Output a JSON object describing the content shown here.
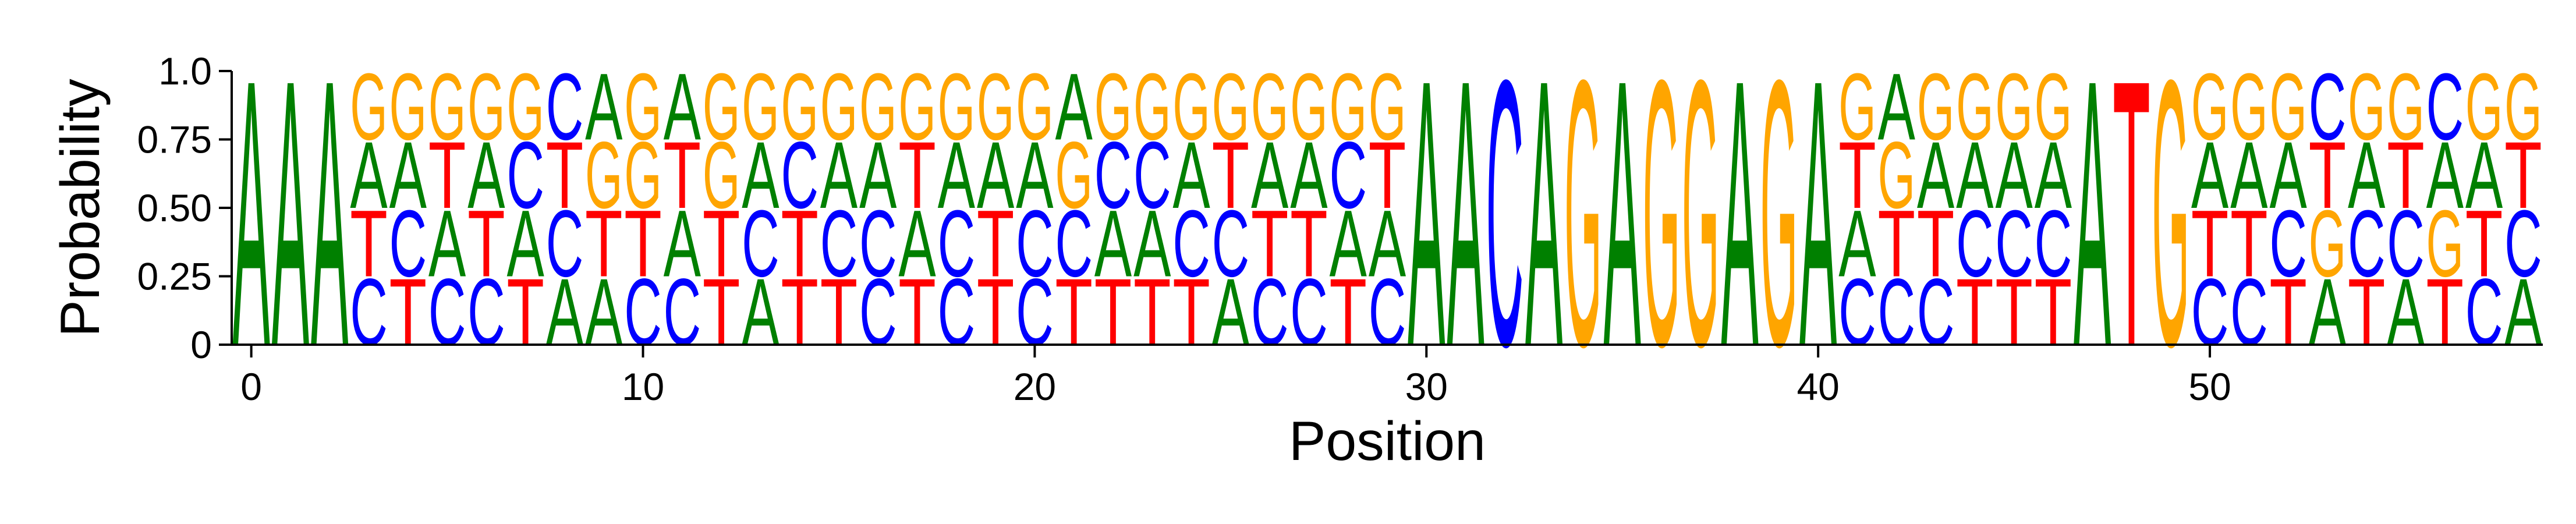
{
  "chart_data": {
    "type": "sequence-logo",
    "xlabel": "Position",
    "ylabel": "Probability",
    "ylim": [
      0,
      1
    ],
    "xlim": [
      -0.5,
      58.5
    ],
    "y_ticks": [
      "0",
      "0.25",
      "0.50",
      "0.75",
      "1.0"
    ],
    "y_tick_values": [
      0,
      0.25,
      0.5,
      0.75,
      1.0
    ],
    "x_ticks": [
      "0",
      "10",
      "20",
      "30",
      "40",
      "50"
    ],
    "x_tick_values": [
      0,
      10,
      20,
      30,
      40,
      50
    ],
    "letter_colors": {
      "A": "#008000",
      "C": "#0000ff",
      "G": "#ffa500",
      "T": "#ff0000"
    },
    "positions": [
      {
        "pos": 0,
        "stack": [
          [
            "A",
            1.0
          ]
        ]
      },
      {
        "pos": 1,
        "stack": [
          [
            "A",
            1.0
          ]
        ]
      },
      {
        "pos": 2,
        "stack": [
          [
            "A",
            1.0
          ]
        ]
      },
      {
        "pos": 3,
        "stack": [
          [
            "C",
            0.25
          ],
          [
            "T",
            0.25
          ],
          [
            "A",
            0.25
          ],
          [
            "G",
            0.25
          ]
        ]
      },
      {
        "pos": 4,
        "stack": [
          [
            "T",
            0.25
          ],
          [
            "C",
            0.25
          ],
          [
            "A",
            0.25
          ],
          [
            "G",
            0.25
          ]
        ]
      },
      {
        "pos": 5,
        "stack": [
          [
            "C",
            0.25
          ],
          [
            "A",
            0.25
          ],
          [
            "T",
            0.25
          ],
          [
            "G",
            0.25
          ]
        ]
      },
      {
        "pos": 6,
        "stack": [
          [
            "C",
            0.25
          ],
          [
            "T",
            0.25
          ],
          [
            "A",
            0.25
          ],
          [
            "G",
            0.25
          ]
        ]
      },
      {
        "pos": 7,
        "stack": [
          [
            "T",
            0.25
          ],
          [
            "A",
            0.25
          ],
          [
            "C",
            0.25
          ],
          [
            "G",
            0.25
          ]
        ]
      },
      {
        "pos": 8,
        "stack": [
          [
            "A",
            0.25
          ],
          [
            "C",
            0.25
          ],
          [
            "T",
            0.25
          ],
          [
            "C",
            0.25
          ]
        ]
      },
      {
        "pos": 9,
        "stack": [
          [
            "A",
            0.25
          ],
          [
            "T",
            0.25
          ],
          [
            "G",
            0.25
          ],
          [
            "A",
            0.25
          ]
        ]
      },
      {
        "pos": 10,
        "stack": [
          [
            "C",
            0.25
          ],
          [
            "T",
            0.25
          ],
          [
            "G",
            0.25
          ],
          [
            "G",
            0.25
          ]
        ]
      },
      {
        "pos": 11,
        "stack": [
          [
            "C",
            0.25
          ],
          [
            "A",
            0.25
          ],
          [
            "T",
            0.25
          ],
          [
            "A",
            0.25
          ]
        ]
      },
      {
        "pos": 12,
        "stack": [
          [
            "T",
            0.25
          ],
          [
            "T",
            0.25
          ],
          [
            "G",
            0.25
          ],
          [
            "G",
            0.25
          ]
        ]
      },
      {
        "pos": 13,
        "stack": [
          [
            "A",
            0.25
          ],
          [
            "C",
            0.25
          ],
          [
            "A",
            0.25
          ],
          [
            "G",
            0.25
          ]
        ]
      },
      {
        "pos": 14,
        "stack": [
          [
            "T",
            0.25
          ],
          [
            "T",
            0.25
          ],
          [
            "C",
            0.25
          ],
          [
            "G",
            0.25
          ]
        ]
      },
      {
        "pos": 15,
        "stack": [
          [
            "T",
            0.25
          ],
          [
            "C",
            0.25
          ],
          [
            "A",
            0.25
          ],
          [
            "G",
            0.25
          ]
        ]
      },
      {
        "pos": 16,
        "stack": [
          [
            "C",
            0.25
          ],
          [
            "C",
            0.25
          ],
          [
            "A",
            0.25
          ],
          [
            "G",
            0.25
          ]
        ]
      },
      {
        "pos": 17,
        "stack": [
          [
            "T",
            0.25
          ],
          [
            "A",
            0.25
          ],
          [
            "T",
            0.25
          ],
          [
            "G",
            0.25
          ]
        ]
      },
      {
        "pos": 18,
        "stack": [
          [
            "C",
            0.25
          ],
          [
            "C",
            0.25
          ],
          [
            "A",
            0.25
          ],
          [
            "G",
            0.25
          ]
        ]
      },
      {
        "pos": 19,
        "stack": [
          [
            "T",
            0.25
          ],
          [
            "T",
            0.25
          ],
          [
            "A",
            0.25
          ],
          [
            "G",
            0.25
          ]
        ]
      },
      {
        "pos": 20,
        "stack": [
          [
            "C",
            0.25
          ],
          [
            "C",
            0.25
          ],
          [
            "A",
            0.25
          ],
          [
            "G",
            0.25
          ]
        ]
      },
      {
        "pos": 21,
        "stack": [
          [
            "T",
            0.25
          ],
          [
            "C",
            0.25
          ],
          [
            "G",
            0.25
          ],
          [
            "A",
            0.25
          ]
        ]
      },
      {
        "pos": 22,
        "stack": [
          [
            "T",
            0.25
          ],
          [
            "A",
            0.25
          ],
          [
            "C",
            0.25
          ],
          [
            "G",
            0.25
          ]
        ]
      },
      {
        "pos": 23,
        "stack": [
          [
            "T",
            0.25
          ],
          [
            "A",
            0.25
          ],
          [
            "C",
            0.25
          ],
          [
            "G",
            0.25
          ]
        ]
      },
      {
        "pos": 24,
        "stack": [
          [
            "T",
            0.25
          ],
          [
            "C",
            0.25
          ],
          [
            "A",
            0.25
          ],
          [
            "G",
            0.25
          ]
        ]
      },
      {
        "pos": 25,
        "stack": [
          [
            "A",
            0.25
          ],
          [
            "C",
            0.25
          ],
          [
            "T",
            0.25
          ],
          [
            "G",
            0.25
          ]
        ]
      },
      {
        "pos": 26,
        "stack": [
          [
            "C",
            0.25
          ],
          [
            "T",
            0.25
          ],
          [
            "A",
            0.25
          ],
          [
            "G",
            0.25
          ]
        ]
      },
      {
        "pos": 27,
        "stack": [
          [
            "C",
            0.25
          ],
          [
            "T",
            0.25
          ],
          [
            "A",
            0.25
          ],
          [
            "G",
            0.25
          ]
        ]
      },
      {
        "pos": 28,
        "stack": [
          [
            "T",
            0.25
          ],
          [
            "A",
            0.25
          ],
          [
            "C",
            0.25
          ],
          [
            "G",
            0.25
          ]
        ]
      },
      {
        "pos": 29,
        "stack": [
          [
            "C",
            0.25
          ],
          [
            "A",
            0.25
          ],
          [
            "T",
            0.25
          ],
          [
            "G",
            0.25
          ]
        ]
      },
      {
        "pos": 30,
        "stack": [
          [
            "A",
            1.0
          ]
        ]
      },
      {
        "pos": 31,
        "stack": [
          [
            "A",
            1.0
          ]
        ]
      },
      {
        "pos": 32,
        "stack": [
          [
            "C",
            1.0
          ]
        ]
      },
      {
        "pos": 33,
        "stack": [
          [
            "A",
            1.0
          ]
        ]
      },
      {
        "pos": 34,
        "stack": [
          [
            "G",
            1.0
          ]
        ]
      },
      {
        "pos": 35,
        "stack": [
          [
            "A",
            1.0
          ]
        ]
      },
      {
        "pos": 36,
        "stack": [
          [
            "G",
            1.0
          ]
        ]
      },
      {
        "pos": 37,
        "stack": [
          [
            "G",
            1.0
          ]
        ]
      },
      {
        "pos": 38,
        "stack": [
          [
            "A",
            1.0
          ]
        ]
      },
      {
        "pos": 39,
        "stack": [
          [
            "G",
            1.0
          ]
        ]
      },
      {
        "pos": 40,
        "stack": [
          [
            "A",
            1.0
          ]
        ]
      },
      {
        "pos": 41,
        "stack": [
          [
            "C",
            0.25
          ],
          [
            "A",
            0.25
          ],
          [
            "T",
            0.25
          ],
          [
            "G",
            0.25
          ]
        ]
      },
      {
        "pos": 42,
        "stack": [
          [
            "C",
            0.25
          ],
          [
            "T",
            0.25
          ],
          [
            "G",
            0.25
          ],
          [
            "A",
            0.25
          ]
        ]
      },
      {
        "pos": 43,
        "stack": [
          [
            "C",
            0.25
          ],
          [
            "T",
            0.25
          ],
          [
            "A",
            0.25
          ],
          [
            "G",
            0.25
          ]
        ]
      },
      {
        "pos": 44,
        "stack": [
          [
            "T",
            0.25
          ],
          [
            "C",
            0.25
          ],
          [
            "A",
            0.25
          ],
          [
            "G",
            0.25
          ]
        ]
      },
      {
        "pos": 45,
        "stack": [
          [
            "T",
            0.25
          ],
          [
            "C",
            0.25
          ],
          [
            "A",
            0.25
          ],
          [
            "G",
            0.25
          ]
        ]
      },
      {
        "pos": 46,
        "stack": [
          [
            "T",
            0.25
          ],
          [
            "C",
            0.25
          ],
          [
            "A",
            0.25
          ],
          [
            "G",
            0.25
          ]
        ]
      },
      {
        "pos": 47,
        "stack": [
          [
            "A",
            1.0
          ]
        ]
      },
      {
        "pos": 48,
        "stack": [
          [
            "T",
            1.0
          ]
        ]
      },
      {
        "pos": 49,
        "stack": [
          [
            "G",
            1.0
          ]
        ]
      },
      {
        "pos": 50,
        "stack": [
          [
            "C",
            0.25
          ],
          [
            "T",
            0.25
          ],
          [
            "A",
            0.25
          ],
          [
            "G",
            0.25
          ]
        ]
      },
      {
        "pos": 51,
        "stack": [
          [
            "C",
            0.25
          ],
          [
            "T",
            0.25
          ],
          [
            "A",
            0.25
          ],
          [
            "G",
            0.25
          ]
        ]
      },
      {
        "pos": 52,
        "stack": [
          [
            "T",
            0.25
          ],
          [
            "C",
            0.25
          ],
          [
            "A",
            0.25
          ],
          [
            "G",
            0.25
          ]
        ]
      },
      {
        "pos": 53,
        "stack": [
          [
            "A",
            0.25
          ],
          [
            "G",
            0.25
          ],
          [
            "T",
            0.25
          ],
          [
            "C",
            0.25
          ]
        ]
      },
      {
        "pos": 54,
        "stack": [
          [
            "T",
            0.25
          ],
          [
            "C",
            0.25
          ],
          [
            "A",
            0.25
          ],
          [
            "G",
            0.25
          ]
        ]
      },
      {
        "pos": 55,
        "stack": [
          [
            "A",
            0.25
          ],
          [
            "C",
            0.25
          ],
          [
            "T",
            0.25
          ],
          [
            "G",
            0.25
          ]
        ]
      },
      {
        "pos": 56,
        "stack": [
          [
            "T",
            0.25
          ],
          [
            "G",
            0.25
          ],
          [
            "A",
            0.25
          ],
          [
            "C",
            0.25
          ]
        ]
      },
      {
        "pos": 57,
        "stack": [
          [
            "C",
            0.25
          ],
          [
            "T",
            0.25
          ],
          [
            "A",
            0.25
          ],
          [
            "G",
            0.25
          ]
        ]
      },
      {
        "pos": 58,
        "stack": [
          [
            "A",
            0.25
          ],
          [
            "C",
            0.25
          ],
          [
            "T",
            0.25
          ],
          [
            "G",
            0.25
          ]
        ]
      }
    ]
  }
}
